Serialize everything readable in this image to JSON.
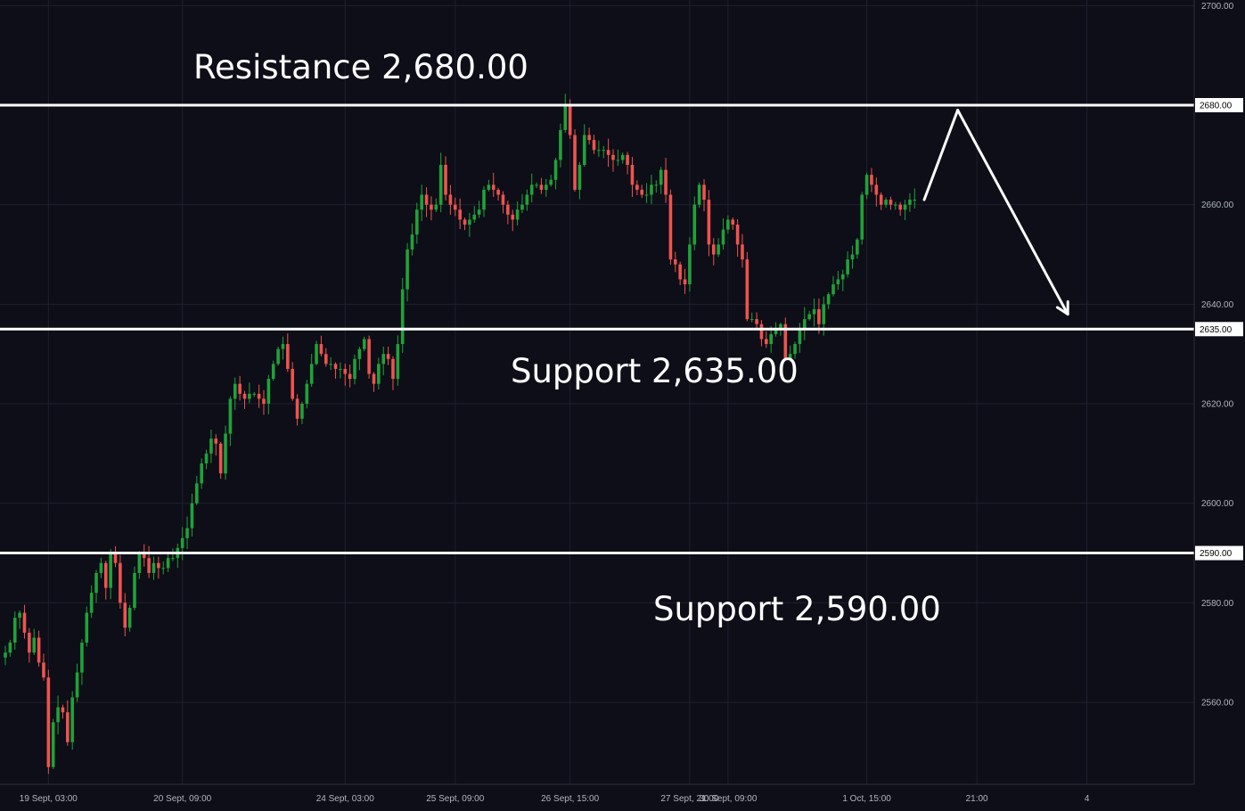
{
  "chart_data": {
    "type": "candlestick",
    "colors": {
      "background": "#0d0e17",
      "up": "#26a69a",
      "up_body": "#1fa23a",
      "down": "#ef5350",
      "grid": "#1e2030",
      "level_line": "#ffffff",
      "axis_text": "#b2b5be"
    },
    "y_axis": {
      "ylim": [
        2540,
        2700
      ],
      "ticks": [
        2700,
        2680,
        2660,
        2640,
        2620,
        2600,
        2580,
        2560
      ],
      "tick_labels": [
        "2700.00",
        "2680.00",
        "2660.00",
        "2640.00",
        "2620.00",
        "2600.00",
        "2580.00",
        "2560.00"
      ]
    },
    "x_axis": {
      "tick_labels": [
        "19 Sept, 03:00",
        "20 Sept, 09:00",
        "24 Sept, 03:00",
        "25 Sept, 09:00",
        "26 Sept, 15:00",
        "27 Sept, 21:00",
        "30 Sept, 09:00",
        "1 Oct, 15:00",
        "21:00",
        "4"
      ],
      "tick_bars": [
        9,
        37,
        71,
        94,
        118,
        143,
        151,
        180,
        203,
        226
      ]
    },
    "levels": [
      {
        "value": 2680,
        "label": "2680.00",
        "annotation": "Resistance 2,680.00"
      },
      {
        "value": 2635,
        "label": "2635.00",
        "annotation": "Support 2,635.00"
      },
      {
        "value": 2590,
        "label": "2590.00",
        "annotation": "Support 2,590.00"
      }
    ],
    "projection": [
      {
        "bar": 192,
        "value": 2661
      },
      {
        "bar": 199,
        "value": 2679
      },
      {
        "bar": 222,
        "value": 2638
      }
    ],
    "closes": [
      2570,
      2572,
      2577,
      2578,
      2574,
      2570,
      2573,
      2568,
      2565,
      2547,
      2556,
      2559,
      2558,
      2552,
      2561,
      2566,
      2572,
      2578,
      2582,
      2586,
      2588,
      2583,
      2590,
      2588,
      2580,
      2575,
      2579,
      2586,
      2590,
      2589,
      2586,
      2588,
      2587,
      2587,
      2589,
      2589,
      2591,
      2593,
      2595,
      2600,
      2604,
      2608,
      2610,
      2613,
      2612,
      2606,
      2614,
      2621,
      2624,
      2622,
      2621,
      2622,
      2622,
      2621,
      2620,
      2625,
      2628,
      2631,
      2632,
      2627,
      2621,
      2617,
      2620,
      2624,
      2628,
      2632,
      2630,
      2628,
      2628,
      2627,
      2627,
      2626,
      2625,
      2629,
      2631,
      2633,
      2626,
      2624,
      2628,
      2630,
      2629,
      2625,
      2632,
      2643,
      2651,
      2654,
      2659,
      2662,
      2660,
      2659,
      2660,
      2668,
      2662,
      2660,
      2659,
      2657,
      2656,
      2657,
      2658,
      2659,
      2663,
      2664,
      2663,
      2662,
      2660,
      2658,
      2657,
      2659,
      2660,
      2662,
      2664,
      2664,
      2663,
      2664,
      2665,
      2669,
      2675,
      2680,
      2674,
      2663,
      2668,
      2674,
      2673,
      2671,
      2671,
      2671,
      2670,
      2669,
      2669,
      2670,
      2668,
      2664,
      2663,
      2662,
      2662,
      2664,
      2664,
      2667,
      2662,
      2649,
      2648,
      2645,
      2644,
      2652,
      2660,
      2664,
      2661,
      2652,
      2650,
      2652,
      2655,
      2657,
      2656,
      2652,
      2649,
      2637,
      2637,
      2636,
      2633,
      2632,
      2634,
      2635,
      2636,
      2629,
      2630,
      2632,
      2635,
      2637,
      2638,
      2639,
      2636,
      2640,
      2642,
      2644,
      2645,
      2646,
      2649,
      2650,
      2653,
      2662,
      2666,
      2664,
      2662,
      2660,
      2661,
      2660,
      2660,
      2659,
      2660,
      2661,
      2661
    ]
  }
}
